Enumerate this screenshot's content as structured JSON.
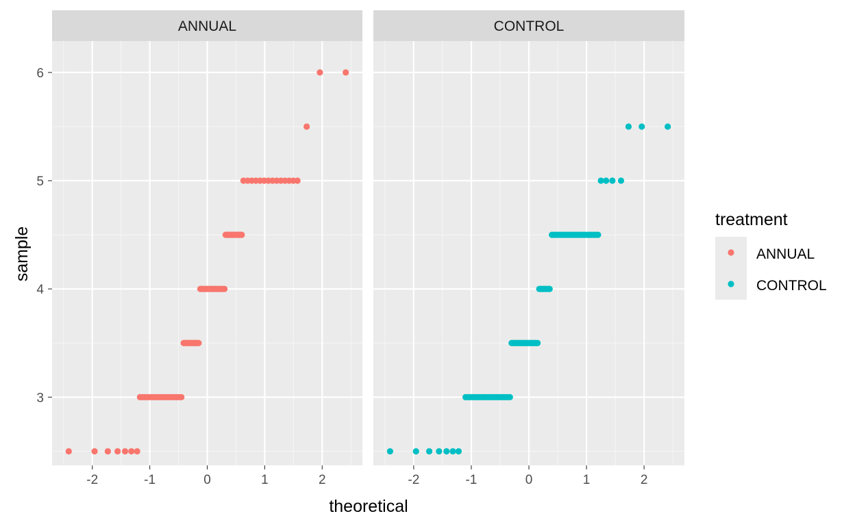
{
  "chart_data": {
    "type": "scatter",
    "subtype": "qq-plot",
    "facet_by": "treatment",
    "xlabel": "theoretical",
    "ylabel": "sample",
    "xlim": [
      -2.7,
      2.7
    ],
    "ylim": [
      2.37,
      6.29
    ],
    "x_ticks": [
      -2,
      -1,
      0,
      1,
      2
    ],
    "y_ticks": [
      3,
      4,
      5,
      6
    ],
    "x_tick_labels": [
      "-2",
      "-1",
      "0",
      "1",
      "2"
    ],
    "y_tick_labels": [
      "3",
      "4",
      "5",
      "6"
    ],
    "grid": true,
    "legend": {
      "title": "treatment",
      "position": "right",
      "entries": [
        {
          "label": "ANNUAL",
          "color": "#F8766D"
        },
        {
          "label": "CONTROL",
          "color": "#00BFC4"
        }
      ]
    },
    "panels": [
      {
        "strip": "ANNUAL",
        "color": "#F8766D",
        "groups": [
          {
            "y": 2.5,
            "x": [
              -2.41,
              -1.96,
              -1.73,
              -1.56,
              -1.43,
              -1.32,
              -1.22
            ]
          },
          {
            "y": 3.0,
            "x_range": [
              -1.17,
              -0.45
            ],
            "n": 18
          },
          {
            "y": 3.5,
            "x_range": [
              -0.41,
              -0.15
            ],
            "n": 14
          },
          {
            "y": 4.0,
            "x_range": [
              -0.12,
              0.3
            ],
            "n": 20
          },
          {
            "y": 4.5,
            "x_range": [
              0.32,
              0.6
            ],
            "n": 14
          },
          {
            "y": 5.0,
            "x_range": [
              0.63,
              1.57
            ],
            "n": 14
          },
          {
            "y": 5.5,
            "x": [
              1.73
            ]
          },
          {
            "y": 6.0,
            "x": [
              1.96,
              2.41
            ]
          }
        ]
      },
      {
        "strip": "CONTROL",
        "color": "#00BFC4",
        "groups": [
          {
            "y": 2.5,
            "x": [
              -2.41,
              -1.96,
              -1.73,
              -1.56,
              -1.43,
              -1.32,
              -1.22
            ]
          },
          {
            "y": 3.0,
            "x_range": [
              -1.1,
              -0.33
            ],
            "n": 20
          },
          {
            "y": 3.5,
            "x_range": [
              -0.3,
              0.15
            ],
            "n": 20
          },
          {
            "y": 4.0,
            "x_range": [
              0.18,
              0.36
            ],
            "n": 10
          },
          {
            "y": 4.5,
            "x_range": [
              0.4,
              1.2
            ],
            "n": 22
          },
          {
            "y": 5.0,
            "x": [
              1.25,
              1.34,
              1.45,
              1.6
            ]
          },
          {
            "y": 5.5,
            "x": [
              1.73,
              1.96,
              2.41
            ]
          }
        ]
      }
    ]
  }
}
